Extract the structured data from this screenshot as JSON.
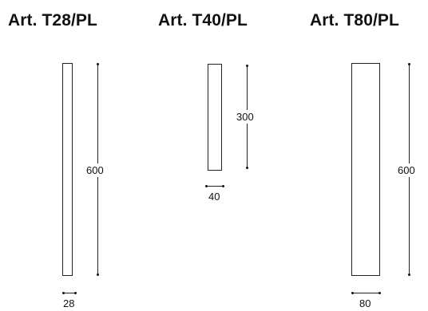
{
  "products": [
    {
      "title": "Art. T28/PL",
      "height_label": "600",
      "width_label": "28"
    },
    {
      "title": "Art. T40/PL",
      "height_label": "300",
      "width_label": "40"
    },
    {
      "title": "Art. T80/PL",
      "height_label": "600",
      "width_label": "80"
    }
  ],
  "colors": {
    "line": "#222222",
    "text": "#111111",
    "background": "#ffffff"
  }
}
